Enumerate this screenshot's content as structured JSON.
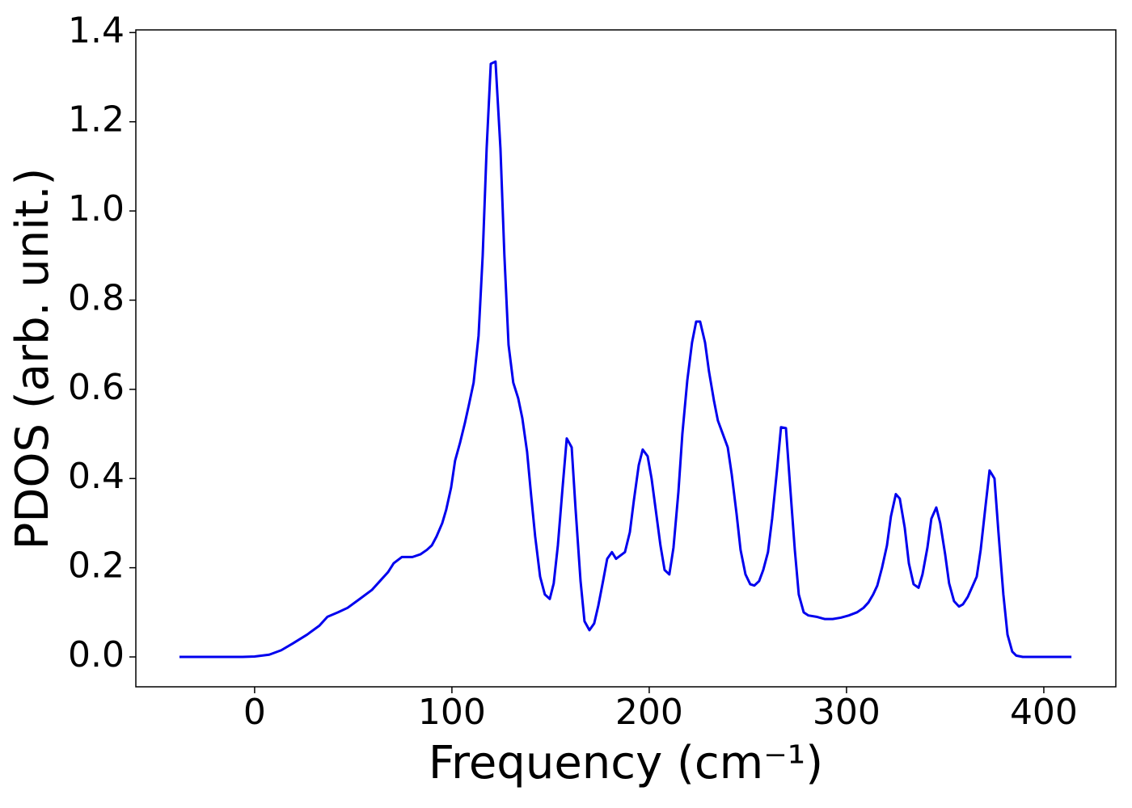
{
  "chart_data": {
    "type": "line",
    "xlabel": "Frequency (cm⁻¹)",
    "ylabel": "PDOS (arb. unit.)",
    "xlim": [
      -60.2,
      436.5
    ],
    "ylim": [
      -0.067,
      1.406
    ],
    "xticks": [
      0,
      100,
      200,
      300,
      400
    ],
    "yticks": [
      {
        "value": 0,
        "label": "0.0"
      },
      0.2,
      0.4,
      0.6,
      0.8,
      {
        "value": 1,
        "label": "1.0"
      },
      1.2,
      1.4
    ],
    "grid": false,
    "series": [
      {
        "color": "#0000ee",
        "x": [
          -38.1,
          -6.1,
          0,
          7.4,
          13.5,
          19.3,
          26.6,
          32.8,
          36.9,
          42.2,
          47.1,
          53.3,
          59.4,
          63.5,
          67.6,
          70.5,
          74.6,
          80,
          84,
          87.3,
          89.8,
          92.2,
          95.1,
          97.1,
          99.6,
          101.6,
          104.1,
          106.6,
          108.6,
          111,
          113.5,
          115.6,
          117.6,
          119.7,
          122.1,
          124.6,
          126.6,
          128.7,
          131.1,
          133.6,
          135.7,
          138.1,
          140.2,
          142.2,
          144.7,
          147.1,
          149.6,
          151.6,
          153.7,
          156.1,
          158.2,
          160.7,
          162.7,
          165.2,
          167.2,
          169.7,
          172.1,
          174.2,
          176.6,
          178.7,
          181.1,
          183.2,
          187.7,
          190.2,
          192.2,
          194.7,
          196.7,
          199.2,
          201.2,
          203.3,
          205.7,
          207.8,
          210.2,
          212.3,
          214.8,
          216.8,
          219.3,
          221.7,
          223.8,
          225.8,
          228.3,
          230.3,
          232.8,
          234.8,
          237.3,
          239.8,
          241.8,
          244.3,
          246.3,
          248.8,
          251.2,
          253.3,
          255.7,
          257.8,
          260.2,
          262.3,
          264.8,
          266.8,
          269.3,
          271.3,
          273.8,
          275.8,
          278.3,
          280.7,
          284.8,
          288.9,
          293,
          297.1,
          301.2,
          305.3,
          308.6,
          311.1,
          313.5,
          315.6,
          318,
          320.5,
          322.5,
          325,
          327,
          329.5,
          331.6,
          334,
          336.5,
          338.5,
          341,
          343,
          345.5,
          347.5,
          350,
          352,
          354.5,
          357,
          359,
          361.5,
          363.5,
          366,
          368,
          370.5,
          372.5,
          375,
          377,
          379.5,
          381.6,
          384,
          386,
          389.3,
          414
        ],
        "values": [
          0,
          0,
          0.001,
          0.005,
          0.015,
          0.03,
          0.05,
          0.07,
          0.09,
          0.1,
          0.11,
          0.13,
          0.15,
          0.17,
          0.19,
          0.21,
          0.224,
          0.224,
          0.23,
          0.24,
          0.25,
          0.27,
          0.3,
          0.33,
          0.38,
          0.44,
          0.48,
          0.525,
          0.565,
          0.615,
          0.72,
          0.9,
          1.14,
          1.33,
          1.335,
          1.14,
          0.9,
          0.7,
          0.615,
          0.58,
          0.535,
          0.46,
          0.36,
          0.27,
          0.18,
          0.14,
          0.13,
          0.165,
          0.25,
          0.38,
          0.49,
          0.47,
          0.33,
          0.17,
          0.08,
          0.06,
          0.075,
          0.115,
          0.17,
          0.22,
          0.235,
          0.22,
          0.235,
          0.28,
          0.35,
          0.43,
          0.465,
          0.45,
          0.4,
          0.33,
          0.25,
          0.195,
          0.185,
          0.245,
          0.37,
          0.5,
          0.62,
          0.705,
          0.752,
          0.752,
          0.705,
          0.64,
          0.575,
          0.53,
          0.5,
          0.47,
          0.41,
          0.32,
          0.24,
          0.185,
          0.163,
          0.16,
          0.17,
          0.195,
          0.235,
          0.31,
          0.42,
          0.515,
          0.513,
          0.39,
          0.24,
          0.14,
          0.1,
          0.093,
          0.09,
          0.085,
          0.085,
          0.088,
          0.093,
          0.1,
          0.11,
          0.122,
          0.14,
          0.16,
          0.2,
          0.25,
          0.315,
          0.365,
          0.355,
          0.29,
          0.21,
          0.163,
          0.155,
          0.185,
          0.245,
          0.31,
          0.335,
          0.3,
          0.23,
          0.165,
          0.125,
          0.113,
          0.118,
          0.135,
          0.155,
          0.18,
          0.24,
          0.34,
          0.418,
          0.4,
          0.28,
          0.14,
          0.05,
          0.012,
          0.003,
          0,
          0
        ]
      }
    ]
  }
}
